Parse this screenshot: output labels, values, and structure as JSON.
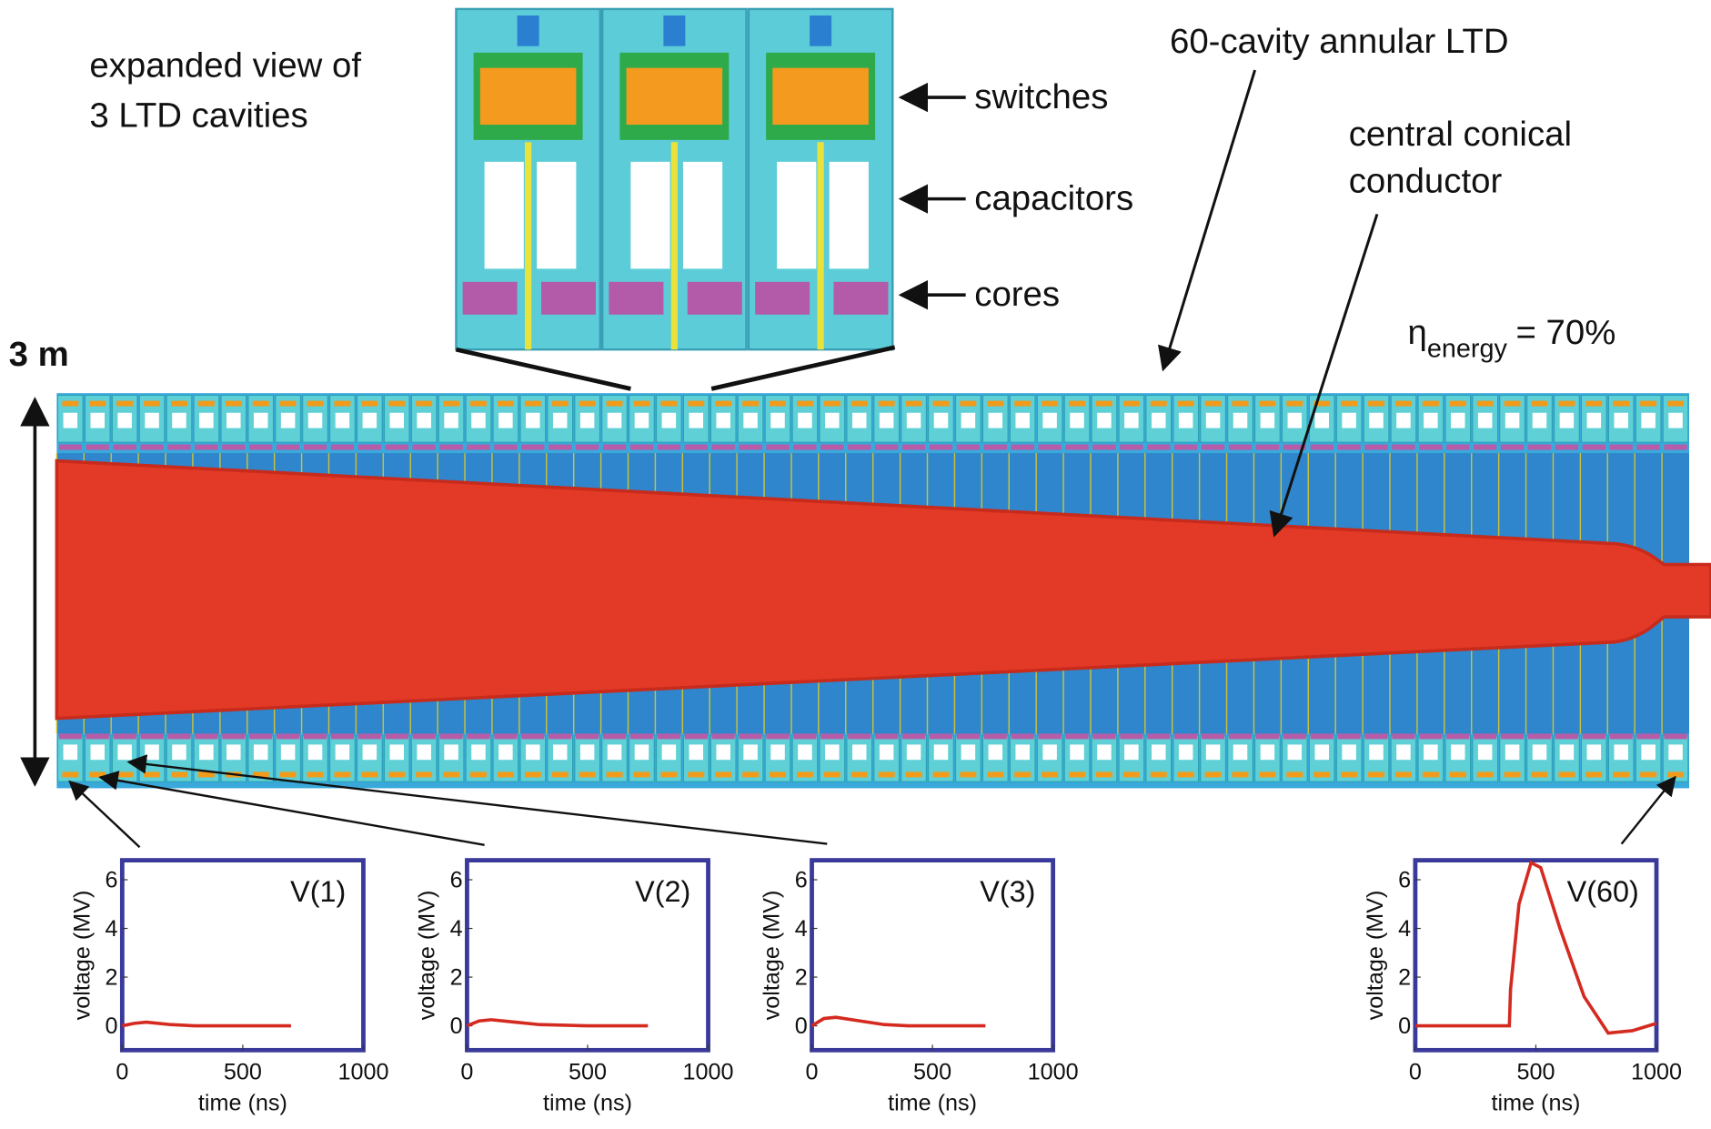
{
  "labels": {
    "expanded_view": [
      "expanded view of",
      "3 LTD cavities"
    ],
    "switches": "switches",
    "capacitors": "capacitors",
    "cores": "cores",
    "ltd": "60-cavity annular LTD",
    "conductor": [
      "central conical",
      "conductor"
    ],
    "height": "3 m",
    "efficiency": {
      "symbol": "η",
      "subscript": "energy",
      "value": "= 70%"
    }
  },
  "plots": [
    {
      "type": "line",
      "label": "V(1)",
      "xlabel": "time (ns)",
      "ylabel": "voltage (MV)",
      "xlim": [
        0,
        1000
      ],
      "ylim": [
        -1,
        6.8
      ],
      "xticks": [
        0,
        500,
        1000
      ],
      "yticks": [
        0,
        2,
        4,
        6
      ],
      "color": "#d42a20",
      "x": [
        0,
        50,
        100,
        200,
        300,
        500,
        700
      ],
      "values": [
        0,
        0.1,
        0.15,
        0.05,
        0,
        0,
        0
      ]
    },
    {
      "type": "line",
      "label": "V(2)",
      "xlabel": "time (ns)",
      "ylabel": "voltage (MV)",
      "xlim": [
        0,
        1000
      ],
      "ylim": [
        -1,
        6.8
      ],
      "xticks": [
        0,
        500,
        1000
      ],
      "yticks": [
        0,
        2,
        4,
        6
      ],
      "color": "#d42a20",
      "x": [
        0,
        50,
        100,
        200,
        300,
        500,
        750
      ],
      "values": [
        0,
        0.2,
        0.25,
        0.15,
        0.05,
        0,
        0
      ]
    },
    {
      "type": "line",
      "label": "V(3)",
      "xlabel": "time (ns)",
      "ylabel": "voltage (MV)",
      "xlim": [
        0,
        1000
      ],
      "ylim": [
        -1,
        6.8
      ],
      "xticks": [
        0,
        500,
        1000
      ],
      "yticks": [
        0,
        2,
        4,
        6
      ],
      "color": "#d42a20",
      "x": [
        0,
        50,
        100,
        200,
        300,
        400,
        500,
        720
      ],
      "values": [
        0,
        0.3,
        0.35,
        0.2,
        0.05,
        0,
        0,
        0
      ]
    },
    {
      "type": "line",
      "label": "V(60)",
      "xlabel": "time (ns)",
      "ylabel": "voltage (MV)",
      "xlim": [
        0,
        1000
      ],
      "ylim": [
        -1,
        6.8
      ],
      "xticks": [
        0,
        500,
        1000
      ],
      "yticks": [
        0,
        2,
        4,
        6
      ],
      "color": "#d42a20",
      "x": [
        0,
        390,
        395,
        430,
        480,
        520,
        600,
        700,
        800,
        900,
        1000
      ],
      "values": [
        0,
        0,
        1.5,
        5,
        6.7,
        6.5,
        4,
        1.2,
        -0.3,
        -0.2,
        0.1
      ]
    }
  ]
}
